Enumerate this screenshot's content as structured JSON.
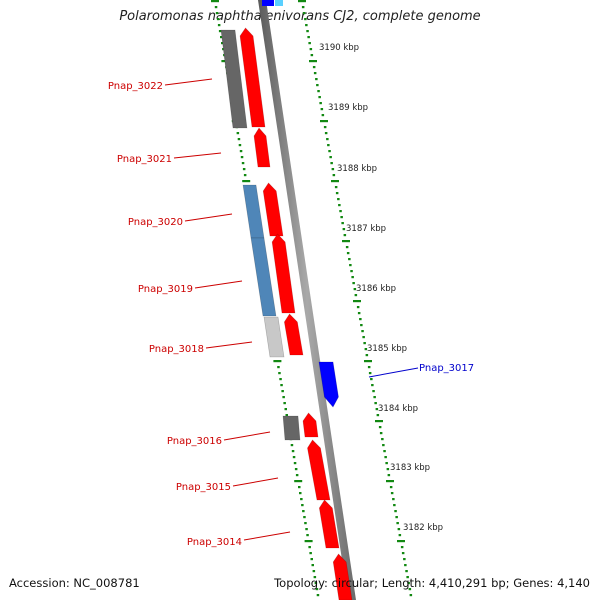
{
  "title": "Polaromonas naphthalenivorans CJ2, complete genome",
  "footer": {
    "accession": "Accession: NC_008781",
    "topology": "Topology: circular",
    "length": "Length: 4,410,291 bp",
    "genes": "Genes: 4,140"
  },
  "scale": {
    "ticks": [
      "3190 kbp",
      "3189 kbp",
      "3188 kbp",
      "3187 kbp",
      "3186 kbp",
      "3185 kbp",
      "3184 kbp",
      "3183 kbp",
      "3182 kbp"
    ]
  },
  "genes": [
    {
      "name": "Pnap_3022",
      "color": "#cc0000"
    },
    {
      "name": "Pnap_3021",
      "color": "#cc0000"
    },
    {
      "name": "Pnap_3020",
      "color": "#cc0000"
    },
    {
      "name": "Pnap_3019",
      "color": "#cc0000"
    },
    {
      "name": "Pnap_3018",
      "color": "#cc0000"
    },
    {
      "name": "Pnap_3017",
      "color": "#0000cc"
    },
    {
      "name": "Pnap_3016",
      "color": "#cc0000"
    },
    {
      "name": "Pnap_3015",
      "color": "#cc0000"
    },
    {
      "name": "Pnap_3014",
      "color": "#cc0000"
    }
  ],
  "colors": {
    "forward_gene": "#ff0000",
    "reverse_gene": "#0000ff",
    "backbone": "#888888",
    "tick": "#118811",
    "cog_dark_gray": "#666666",
    "cog_steel_blue": "#4f86b8",
    "cog_light_gray": "#c8c8c8"
  }
}
